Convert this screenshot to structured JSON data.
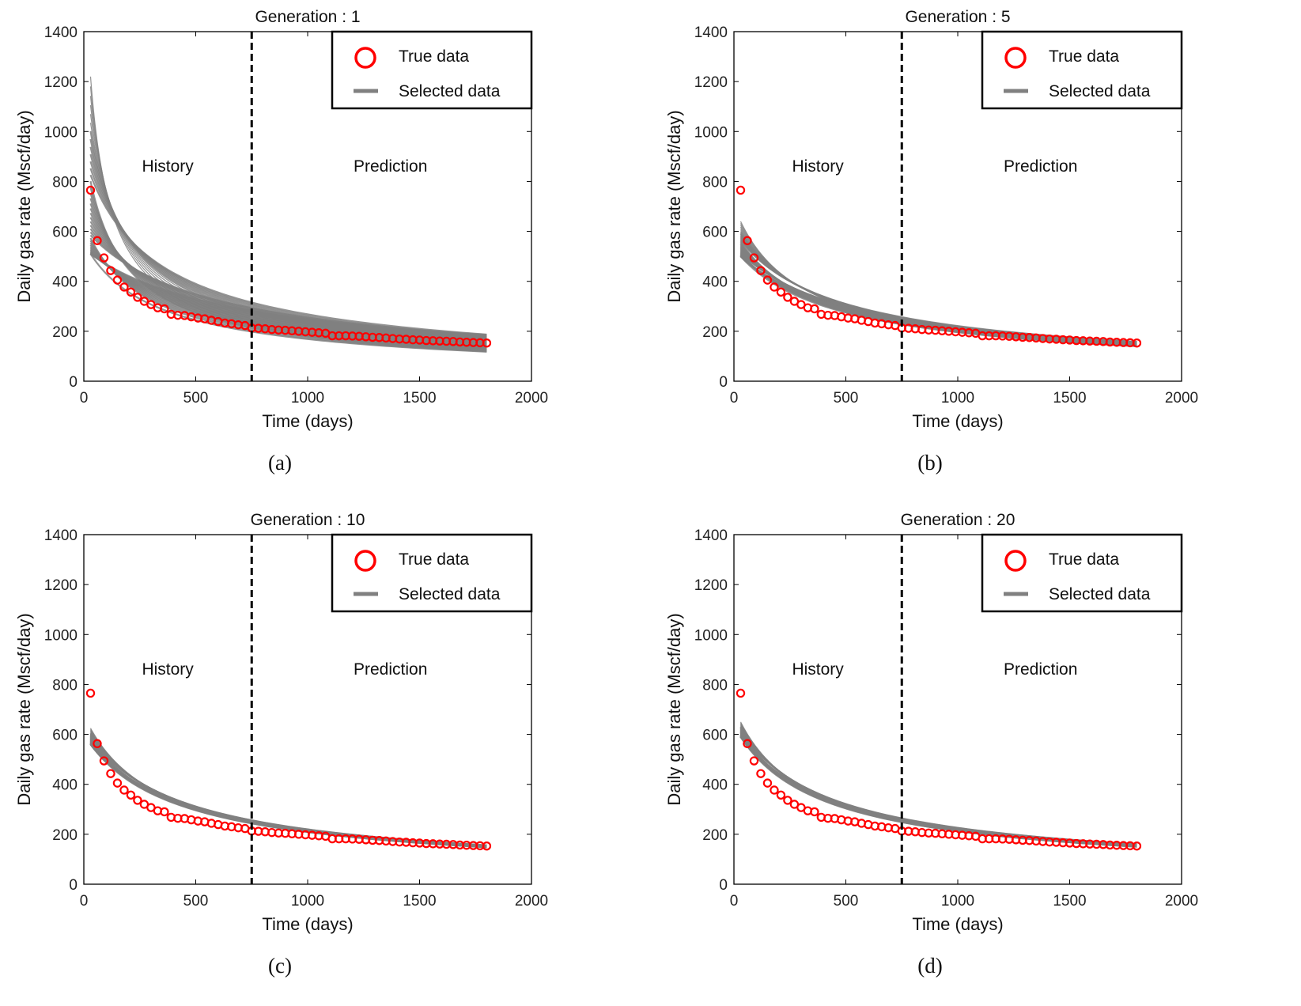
{
  "figure": {
    "panels": [
      {
        "caption": "(a)"
      },
      {
        "caption": "(b)"
      },
      {
        "caption": "(c)"
      },
      {
        "caption": "(d)"
      }
    ]
  },
  "chart_data": [
    {
      "type": "scatter",
      "title": "Generation : 1",
      "xlabel": "Time (days)",
      "ylabel": "Daily gas rate (Mscf/day)",
      "xlim": [
        0,
        2000
      ],
      "ylim": [
        0,
        1400
      ],
      "xticks": [
        0,
        500,
        1000,
        1500,
        2000
      ],
      "yticks": [
        0,
        200,
        400,
        600,
        800,
        1000,
        1200,
        1400
      ],
      "grid": false,
      "legend": {
        "placement": "top-right",
        "entries": [
          "True data",
          "Selected data"
        ]
      },
      "annotations": [
        {
          "text": "History",
          "x": 375,
          "y": 840
        },
        {
          "text": "Prediction",
          "x": 1370,
          "y": 840
        }
      ],
      "divider_x": 750,
      "colors": {
        "true_data": "#ff0000",
        "selected_data": "#808080",
        "divider": "#000000"
      },
      "series": [
        {
          "name": "True data",
          "type": "scatter",
          "x": [
            30,
            60,
            90,
            120,
            150,
            180,
            210,
            240,
            270,
            300,
            330,
            360,
            390,
            420,
            450,
            480,
            510,
            540,
            570,
            600,
            630,
            660,
            690,
            720,
            750,
            780,
            810,
            840,
            870,
            900,
            930,
            960,
            990,
            1020,
            1050,
            1080,
            1110,
            1140,
            1170,
            1200,
            1230,
            1260,
            1290,
            1320,
            1350,
            1380,
            1410,
            1440,
            1470,
            1500,
            1530,
            1560,
            1590,
            1620,
            1650,
            1680,
            1710,
            1740,
            1770,
            1800
          ],
          "y": [
            765,
            563,
            494,
            443,
            405,
            377,
            357,
            336,
            320,
            307,
            294,
            290,
            268,
            264,
            263,
            258,
            253,
            250,
            244,
            239,
            233,
            230,
            226,
            223,
            213,
            212,
            210,
            207,
            205,
            204,
            202,
            200,
            198,
            196,
            194,
            192,
            182,
            182,
            182,
            181,
            180,
            178,
            176,
            175,
            173,
            171,
            169,
            168,
            166,
            165,
            163,
            162,
            161,
            160,
            159,
            157,
            156,
            155,
            154,
            153
          ]
        },
        {
          "name": "Selected data",
          "type": "band",
          "decline": "hyperbolic",
          "t0": 30,
          "t_end": 1800,
          "y0_range": [
            510,
            1220
          ],
          "y_end_range": [
            118,
            187
          ],
          "curve_count": 40
        }
      ]
    },
    {
      "type": "scatter",
      "title": "Generation : 5",
      "xlabel": "Time (days)",
      "ylabel": "Daily gas rate (Mscf/day)",
      "xlim": [
        0,
        2000
      ],
      "ylim": [
        0,
        1400
      ],
      "xticks": [
        0,
        500,
        1000,
        1500,
        2000
      ],
      "yticks": [
        0,
        200,
        400,
        600,
        800,
        1000,
        1200,
        1400
      ],
      "grid": false,
      "legend": {
        "placement": "top-right",
        "entries": [
          "True data",
          "Selected data"
        ]
      },
      "annotations": [
        {
          "text": "History",
          "x": 375,
          "y": 840
        },
        {
          "text": "Prediction",
          "x": 1370,
          "y": 840
        }
      ],
      "divider_x": 750,
      "colors": {
        "true_data": "#ff0000",
        "selected_data": "#808080",
        "divider": "#000000"
      },
      "series": [
        {
          "name": "True data",
          "type": "scatter",
          "x": [
            30,
            60,
            90,
            120,
            150,
            180,
            210,
            240,
            270,
            300,
            330,
            360,
            390,
            420,
            450,
            480,
            510,
            540,
            570,
            600,
            630,
            660,
            690,
            720,
            750,
            780,
            810,
            840,
            870,
            900,
            930,
            960,
            990,
            1020,
            1050,
            1080,
            1110,
            1140,
            1170,
            1200,
            1230,
            1260,
            1290,
            1320,
            1350,
            1380,
            1410,
            1440,
            1470,
            1500,
            1530,
            1560,
            1590,
            1620,
            1650,
            1680,
            1710,
            1740,
            1770,
            1800
          ],
          "y": [
            765,
            563,
            494,
            443,
            405,
            377,
            357,
            336,
            320,
            307,
            294,
            290,
            268,
            264,
            263,
            258,
            253,
            250,
            244,
            239,
            233,
            230,
            226,
            223,
            213,
            212,
            210,
            207,
            205,
            204,
            202,
            200,
            198,
            196,
            194,
            192,
            182,
            182,
            182,
            181,
            180,
            178,
            176,
            175,
            173,
            171,
            169,
            168,
            166,
            165,
            163,
            162,
            161,
            160,
            159,
            157,
            156,
            155,
            154,
            153
          ]
        },
        {
          "name": "Selected data",
          "type": "band",
          "decline": "hyperbolic",
          "t0": 30,
          "t_end": 1800,
          "y0_range": [
            500,
            640
          ],
          "y_end_range": [
            140,
            158
          ],
          "curve_count": 40
        }
      ]
    },
    {
      "type": "scatter",
      "title": "Generation : 10",
      "xlabel": "Time (days)",
      "ylabel": "Daily gas rate (Mscf/day)",
      "xlim": [
        0,
        2000
      ],
      "ylim": [
        0,
        1400
      ],
      "xticks": [
        0,
        500,
        1000,
        1500,
        2000
      ],
      "yticks": [
        0,
        200,
        400,
        600,
        800,
        1000,
        1200,
        1400
      ],
      "grid": false,
      "legend": {
        "placement": "top-right",
        "entries": [
          "True data",
          "Selected data"
        ]
      },
      "annotations": [
        {
          "text": "History",
          "x": 375,
          "y": 840
        },
        {
          "text": "Prediction",
          "x": 1370,
          "y": 840
        }
      ],
      "divider_x": 750,
      "colors": {
        "true_data": "#ff0000",
        "selected_data": "#808080",
        "divider": "#000000"
      },
      "series": [
        {
          "name": "True data",
          "type": "scatter",
          "x": [
            30,
            60,
            90,
            120,
            150,
            180,
            210,
            240,
            270,
            300,
            330,
            360,
            390,
            420,
            450,
            480,
            510,
            540,
            570,
            600,
            630,
            660,
            690,
            720,
            750,
            780,
            810,
            840,
            870,
            900,
            930,
            960,
            990,
            1020,
            1050,
            1080,
            1110,
            1140,
            1170,
            1200,
            1230,
            1260,
            1290,
            1320,
            1350,
            1380,
            1410,
            1440,
            1470,
            1500,
            1530,
            1560,
            1590,
            1620,
            1650,
            1680,
            1710,
            1740,
            1770,
            1800
          ],
          "y": [
            765,
            563,
            494,
            443,
            405,
            377,
            357,
            336,
            320,
            307,
            294,
            290,
            268,
            264,
            263,
            258,
            253,
            250,
            244,
            239,
            233,
            230,
            226,
            223,
            213,
            212,
            210,
            207,
            205,
            204,
            202,
            200,
            198,
            196,
            194,
            192,
            182,
            182,
            182,
            181,
            180,
            178,
            176,
            175,
            173,
            171,
            169,
            168,
            166,
            165,
            163,
            162,
            161,
            160,
            159,
            157,
            156,
            155,
            154,
            153
          ]
        },
        {
          "name": "Selected data",
          "type": "band",
          "decline": "hyperbolic",
          "t0": 30,
          "t_end": 1800,
          "y0_range": [
            560,
            625
          ],
          "y_end_range": [
            148,
            156
          ],
          "curve_count": 40
        }
      ]
    },
    {
      "type": "scatter",
      "title": "Generation : 20",
      "xlabel": "Time (days)",
      "ylabel": "Daily gas rate (Mscf/day)",
      "xlim": [
        0,
        2000
      ],
      "ylim": [
        0,
        1400
      ],
      "xticks": [
        0,
        500,
        1000,
        1500,
        2000
      ],
      "yticks": [
        0,
        200,
        400,
        600,
        800,
        1000,
        1200,
        1400
      ],
      "grid": false,
      "legend": {
        "placement": "top-right",
        "entries": [
          "True data",
          "Selected data"
        ]
      },
      "annotations": [
        {
          "text": "History",
          "x": 375,
          "y": 840
        },
        {
          "text": "Prediction",
          "x": 1370,
          "y": 840
        }
      ],
      "divider_x": 750,
      "colors": {
        "true_data": "#ff0000",
        "selected_data": "#808080",
        "divider": "#000000"
      },
      "series": [
        {
          "name": "True data",
          "type": "scatter",
          "x": [
            30,
            60,
            90,
            120,
            150,
            180,
            210,
            240,
            270,
            300,
            330,
            360,
            390,
            420,
            450,
            480,
            510,
            540,
            570,
            600,
            630,
            660,
            690,
            720,
            750,
            780,
            810,
            840,
            870,
            900,
            930,
            960,
            990,
            1020,
            1050,
            1080,
            1110,
            1140,
            1170,
            1200,
            1230,
            1260,
            1290,
            1320,
            1350,
            1380,
            1410,
            1440,
            1470,
            1500,
            1530,
            1560,
            1590,
            1620,
            1650,
            1680,
            1710,
            1740,
            1770,
            1800
          ],
          "y": [
            765,
            563,
            494,
            443,
            405,
            377,
            357,
            336,
            320,
            307,
            294,
            290,
            268,
            264,
            263,
            258,
            253,
            250,
            244,
            239,
            233,
            230,
            226,
            223,
            213,
            212,
            210,
            207,
            205,
            204,
            202,
            200,
            198,
            196,
            194,
            192,
            182,
            182,
            182,
            181,
            180,
            178,
            176,
            175,
            173,
            171,
            169,
            168,
            166,
            165,
            163,
            162,
            161,
            160,
            159,
            157,
            156,
            155,
            154,
            153
          ]
        },
        {
          "name": "Selected data",
          "type": "band",
          "decline": "hyperbolic",
          "t0": 30,
          "t_end": 1800,
          "y0_range": [
            590,
            650
          ],
          "y_end_range": [
            150,
            160
          ],
          "curve_count": 40
        }
      ]
    }
  ]
}
